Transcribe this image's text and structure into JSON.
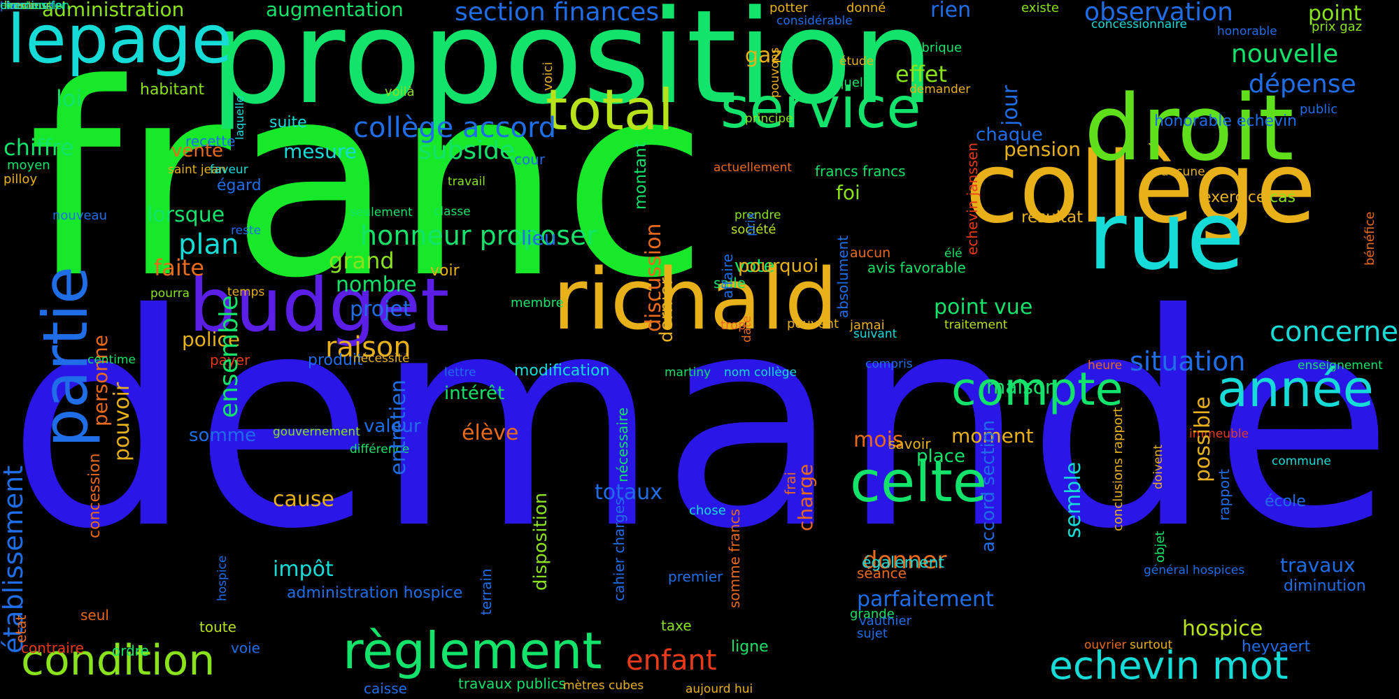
{
  "background": "#000000",
  "palette": {
    "green": "#18e82a",
    "mint": "#12e36a",
    "blue": "#2a16e6",
    "violet": "#5a1ee6",
    "gold": "#e8b11a",
    "cyan": "#16dcd8",
    "lime": "#8ae21a",
    "azure": "#1f6ee8",
    "orange": "#e86a1a",
    "red": "#e83a1a"
  },
  "words": [
    {
      "text": "franc",
      "color": "#18e82a"
    },
    {
      "text": "demande",
      "color": "#2a16e6"
    },
    {
      "text": "proposition",
      "color": "#12e36a"
    },
    {
      "text": "collège",
      "color": "#e8b11a"
    },
    {
      "text": "droit",
      "color": "#5fe01a"
    },
    {
      "text": "richald",
      "color": "#e8b11a"
    },
    {
      "text": "budget",
      "color": "#5a1ee6"
    },
    {
      "text": "rue",
      "color": "#16dcd8"
    },
    {
      "text": "lepage",
      "color": "#16dcd8"
    },
    {
      "text": "service",
      "color": "#12e36a"
    },
    {
      "text": "total",
      "color": "#b8e21a"
    },
    {
      "text": "partie",
      "color": "#1f6ee8"
    },
    {
      "text": "celte",
      "color": "#12e36a"
    },
    {
      "text": "compte",
      "color": "#12e36a"
    },
    {
      "text": "année",
      "color": "#16dcd8"
    },
    {
      "text": "règlement",
      "color": "#12e36a"
    },
    {
      "text": "condition",
      "color": "#8ae21a"
    },
    {
      "text": "echevin mot",
      "color": "#16dcd8"
    },
    {
      "text": "établissement",
      "color": "#1f6ee8"
    },
    {
      "text": "administration",
      "color": "#8ae21a"
    },
    {
      "text": "augmentation",
      "color": "#12e36a"
    },
    {
      "text": "section finances",
      "color": "#1f6ee8"
    },
    {
      "text": "observation",
      "color": "#1f6ee8"
    },
    {
      "text": "point",
      "color": "#8ae21a"
    },
    {
      "text": "rien",
      "color": "#1f6ee8"
    },
    {
      "text": "potter",
      "color": "#e8b11a"
    },
    {
      "text": "donné",
      "color": "#e8b11a"
    },
    {
      "text": "existe",
      "color": "#8ae21a"
    },
    {
      "text": "considérable",
      "color": "#1f6ee8"
    },
    {
      "text": "concessionnaire",
      "color": "#16dcd8"
    },
    {
      "text": "honorable",
      "color": "#1f6ee8"
    },
    {
      "text": "prix gaz",
      "color": "#8ae21a"
    },
    {
      "text": "nouvelle",
      "color": "#12e36a"
    },
    {
      "text": "dépense",
      "color": "#1f6ee8"
    },
    {
      "text": "gaz",
      "color": "#e8b11a"
    },
    {
      "text": "effet",
      "color": "#8ae21a"
    },
    {
      "text": "jour",
      "color": "#1f6ee8"
    },
    {
      "text": "loi",
      "color": "#12e36a"
    },
    {
      "text": "habitant",
      "color": "#8ae21a"
    },
    {
      "text": "voilà",
      "color": "#8ae21a"
    },
    {
      "text": "voici",
      "color": "#e8b11a"
    },
    {
      "text": "pouvons",
      "color": "#e8b11a"
    },
    {
      "text": "étude",
      "color": "#e8b11a"
    },
    {
      "text": "fabrique",
      "color": "#12e36a"
    },
    {
      "text": "quelle",
      "color": "#12e36a"
    },
    {
      "text": "demander",
      "color": "#e8b11a"
    },
    {
      "text": "public",
      "color": "#1f6ee8"
    },
    {
      "text": "suite",
      "color": "#16dcd8"
    },
    {
      "text": "laquelle",
      "color": "#16dcd8"
    },
    {
      "text": "principe",
      "color": "#8ae21a"
    },
    {
      "text": "honorable echevin",
      "color": "#1f6ee8"
    },
    {
      "text": "bénéfice",
      "color": "#e86a1a"
    },
    {
      "text": "collège accord",
      "color": "#1f6ee8"
    },
    {
      "text": "chiffre",
      "color": "#12e36a"
    },
    {
      "text": "recette",
      "color": "#1f6ee8"
    },
    {
      "text": "vente",
      "color": "#e86a1a"
    },
    {
      "text": "mesure",
      "color": "#16dcd8"
    },
    {
      "text": "subside",
      "color": "#12e36a"
    },
    {
      "text": "cour",
      "color": "#1f6ee8"
    },
    {
      "text": "chaque",
      "color": "#1f6ee8"
    },
    {
      "text": "pension",
      "color": "#e8b11a"
    },
    {
      "text": "moyen",
      "color": "#12e36a"
    },
    {
      "text": "saint jean",
      "color": "#e8b11a"
    },
    {
      "text": "faveur",
      "color": "#16dcd8"
    },
    {
      "text": "actuellement",
      "color": "#e86a1a"
    },
    {
      "text": "francs francs",
      "color": "#12e36a"
    },
    {
      "text": "aucune",
      "color": "#e8b11a"
    },
    {
      "text": "pilloy",
      "color": "#e8b11a"
    },
    {
      "text": "égard",
      "color": "#1f6ee8"
    },
    {
      "text": "travail",
      "color": "#8ae21a"
    },
    {
      "text": "montant",
      "color": "#12e36a"
    },
    {
      "text": "foi",
      "color": "#8ae21a"
    },
    {
      "text": "cas",
      "color": "#8ae21a"
    },
    {
      "text": "exercice",
      "color": "#e8b11a"
    },
    {
      "text": "nouveau",
      "color": "#1f6ee8"
    },
    {
      "text": "lorsque",
      "color": "#12e36a"
    },
    {
      "text": "reste",
      "color": "#1f6ee8"
    },
    {
      "text": "seulement",
      "color": "#12e36a"
    },
    {
      "text": "classe",
      "color": "#12e36a"
    },
    {
      "text": "prendre",
      "color": "#8ae21a"
    },
    {
      "text": "résultat",
      "color": "#e8b11a"
    },
    {
      "text": "plan",
      "color": "#16dcd8"
    },
    {
      "text": "honneur proposer",
      "color": "#12e36a"
    },
    {
      "text": "lieu",
      "color": "#1f6ee8"
    },
    {
      "text": "société",
      "color": "#b8e21a"
    },
    {
      "text": "élé",
      "color": "#12e36a"
    },
    {
      "text": "prix",
      "color": "#1f6ee8"
    },
    {
      "text": "aucun",
      "color": "#e86a1a"
    },
    {
      "text": "vote",
      "color": "#12e36a"
    },
    {
      "text": "avis favorable",
      "color": "#12e36a"
    },
    {
      "text": "personne",
      "color": "#e86a1a"
    },
    {
      "text": "faite",
      "color": "#e86a1a"
    },
    {
      "text": "grand",
      "color": "#8ae21a"
    },
    {
      "text": "voir",
      "color": "#e8b11a"
    },
    {
      "text": "pourquoi",
      "color": "#e8b11a"
    },
    {
      "text": "salle",
      "color": "#12e36a"
    },
    {
      "text": "pourra",
      "color": "#8ae21a"
    },
    {
      "text": "temps",
      "color": "#e8b11a"
    },
    {
      "text": "nombre",
      "color": "#12e36a"
    },
    {
      "text": "membre",
      "color": "#12e36a"
    },
    {
      "text": "discussion",
      "color": "#e86a1a"
    },
    {
      "text": "dernier",
      "color": "#e8b11a"
    },
    {
      "text": "point vue",
      "color": "#12e36a"
    },
    {
      "text": "traitement",
      "color": "#b8e21a"
    },
    {
      "text": "concerne",
      "color": "#16dcd8"
    },
    {
      "text": "projet",
      "color": "#1f6ee8"
    },
    {
      "text": "affaire",
      "color": "#1f6ee8"
    },
    {
      "text": "peuvent",
      "color": "#e8b11a"
    },
    {
      "text": "trop",
      "color": "#e86a1a"
    },
    {
      "text": "jamai",
      "color": "#e8b11a"
    },
    {
      "text": "police",
      "color": "#e8b11a"
    },
    {
      "text": "raison",
      "color": "#e8b11a"
    },
    {
      "text": "produit",
      "color": "#1f6ee8"
    },
    {
      "text": "absolument",
      "color": "#1f6ee8"
    },
    {
      "text": "suivant",
      "color": "#16dcd8"
    },
    {
      "text": "date",
      "color": "#e86a1a"
    },
    {
      "text": "echevin janssen",
      "color": "#e83a1a"
    },
    {
      "text": "centime",
      "color": "#12e36a"
    },
    {
      "text": "payer",
      "color": "#e83a1a"
    },
    {
      "text": "nécessité",
      "color": "#e8b11a"
    },
    {
      "text": "lettre",
      "color": "#1f6ee8"
    },
    {
      "text": "modification",
      "color": "#16dcd8"
    },
    {
      "text": "martiny",
      "color": "#12e36a"
    },
    {
      "text": "nom collège",
      "color": "#16dcd8"
    },
    {
      "text": "compris",
      "color": "#1f6ee8"
    },
    {
      "text": "heure",
      "color": "#e86a1a"
    },
    {
      "text": "situation",
      "color": "#1f6ee8"
    },
    {
      "text": "enseignement",
      "color": "#12e36a"
    },
    {
      "text": "maison",
      "color": "#12e36a"
    },
    {
      "text": "intérêt",
      "color": "#12e36a"
    },
    {
      "text": "somme",
      "color": "#1f6ee8"
    },
    {
      "text": "valeur",
      "color": "#1f6ee8"
    },
    {
      "text": "élève",
      "color": "#e86a1a"
    },
    {
      "text": "moment",
      "color": "#e8b11a"
    },
    {
      "text": "mois",
      "color": "#e86a1a"
    },
    {
      "text": "gouvernement",
      "color": "#8ae21a"
    },
    {
      "text": "savoir",
      "color": "#e8b11a"
    },
    {
      "text": "différence",
      "color": "#12e36a"
    },
    {
      "text": "place",
      "color": "#12e36a"
    },
    {
      "text": "immeuble",
      "color": "#e83a1a"
    },
    {
      "text": "commune",
      "color": "#16dcd8"
    },
    {
      "text": "ensemble",
      "color": "#12e36a"
    },
    {
      "text": "pouvoir",
      "color": "#e8b11a"
    },
    {
      "text": "entretien",
      "color": "#1f6ee8"
    },
    {
      "text": "cause",
      "color": "#e8b11a"
    },
    {
      "text": "totaux",
      "color": "#1f6ee8"
    },
    {
      "text": "nécessaire",
      "color": "#12e36a"
    },
    {
      "text": "chose",
      "color": "#16dcd8"
    },
    {
      "text": "somme francs",
      "color": "#e86a1a"
    },
    {
      "text": "frai",
      "color": "#e86a1a"
    },
    {
      "text": "charge",
      "color": "#e86a1a"
    },
    {
      "text": "donner",
      "color": "#e86a1a"
    },
    {
      "text": "accord section",
      "color": "#1f6ee8"
    },
    {
      "text": "semble",
      "color": "#16dcd8"
    },
    {
      "text": "conclusions rapport",
      "color": "#e8b11a"
    },
    {
      "text": "doivent",
      "color": "#e8b11a"
    },
    {
      "text": "possible",
      "color": "#e8b11a"
    },
    {
      "text": "également",
      "color": "#16dcd8"
    },
    {
      "text": "école",
      "color": "#1f6ee8"
    },
    {
      "text": "rapport",
      "color": "#1f6ee8"
    },
    {
      "text": "travaux",
      "color": "#1f6ee8"
    },
    {
      "text": "diminution",
      "color": "#1f6ee8"
    },
    {
      "text": "etat",
      "color": "#e86a1a"
    },
    {
      "text": "concession",
      "color": "#e86a1a"
    },
    {
      "text": "hospice",
      "color": "#1f6ee8"
    },
    {
      "text": "impôt",
      "color": "#16dcd8"
    },
    {
      "text": "administration hospice",
      "color": "#1f6ee8"
    },
    {
      "text": "terrain",
      "color": "#1f6ee8"
    },
    {
      "text": "disposition",
      "color": "#8ae21a"
    },
    {
      "text": "cahier charges",
      "color": "#1f6ee8"
    },
    {
      "text": "premier",
      "color": "#1f6ee8"
    },
    {
      "text": "général hospices",
      "color": "#1f6ee8"
    },
    {
      "text": "objet",
      "color": "#12e36a"
    },
    {
      "text": "séance",
      "color": "#e86a1a"
    },
    {
      "text": "parfaitement",
      "color": "#1f6ee8"
    },
    {
      "text": "grande",
      "color": "#12e36a"
    },
    {
      "text": "vauthier",
      "color": "#1f6ee8"
    },
    {
      "text": "sujet",
      "color": "#1f6ee8"
    },
    {
      "text": "hospice ",
      "color": "#b8e21a"
    },
    {
      "text": "seul",
      "color": "#e86a1a"
    },
    {
      "text": "toute",
      "color": "#b8e21a"
    },
    {
      "text": "taxe",
      "color": "#8ae21a"
    },
    {
      "text": "contraire",
      "color": "#e83a1a"
    },
    {
      "text": "ordre",
      "color": "#12e36a"
    },
    {
      "text": "voie",
      "color": "#1f6ee8"
    },
    {
      "text": "ligne",
      "color": "#12e36a"
    },
    {
      "text": "enfant",
      "color": "#e83a1a"
    },
    {
      "text": "ouvrier",
      "color": "#e86a1a"
    },
    {
      "text": "surtout",
      "color": "#e8b11a"
    },
    {
      "text": "heyvaert",
      "color": "#1f6ee8"
    },
    {
      "text": "caisse",
      "color": "#1f6ee8"
    },
    {
      "text": "travaux publics",
      "color": "#12e36a"
    },
    {
      "text": "mètres cubes",
      "color": "#e8b11a"
    },
    {
      "text": "aujourd hui",
      "color": "#e8b11a"
    },
    {
      "text": "personnel",
      "color": "#1f6ee8"
    },
    {
      "text": "trouve",
      "color": "#e86a1a"
    },
    {
      "text": "construction",
      "color": "#12e36a"
    },
    {
      "text": "titre",
      "color": "#1f6ee8"
    },
    {
      "text": "directeur",
      "color": "#8ae21a"
    },
    {
      "text": "examen",
      "color": "#12e36a"
    },
    {
      "text": "chemins fer",
      "color": "#16dcd8"
    }
  ]
}
